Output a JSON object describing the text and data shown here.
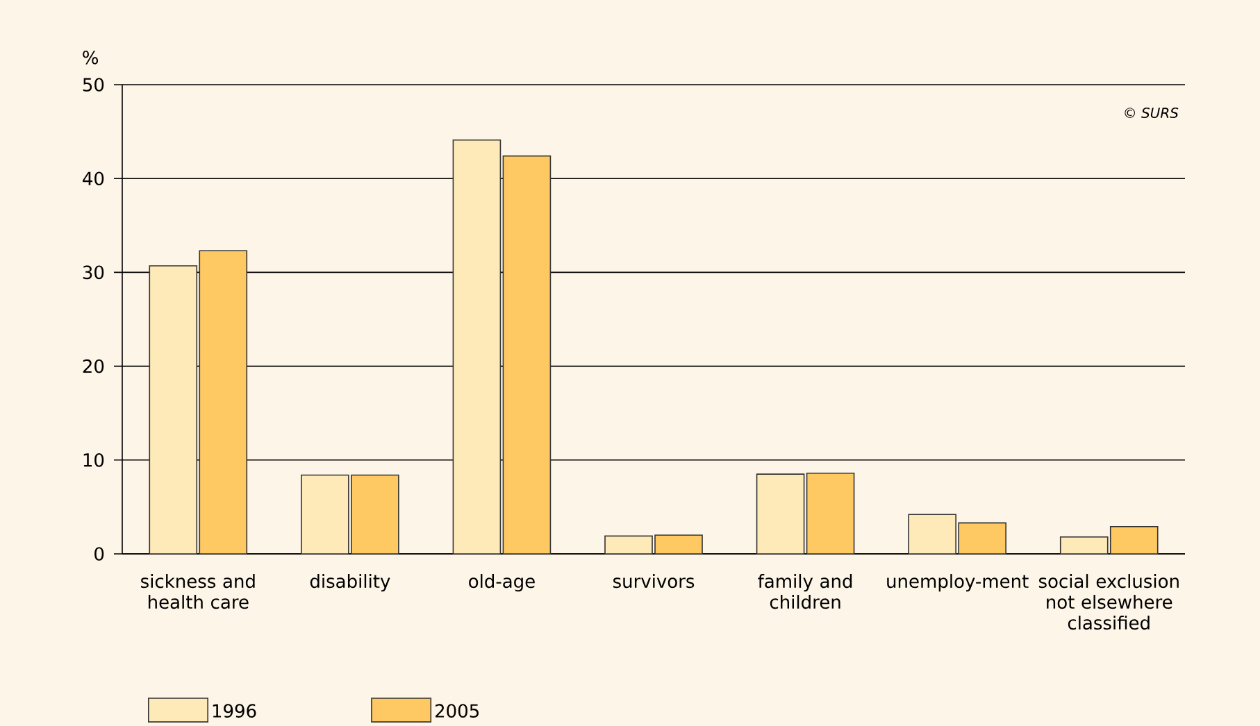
{
  "chart_data": {
    "type": "bar",
    "ylabel": "%",
    "categories": [
      "sickness and health care",
      "disability",
      "old-age",
      "survivors",
      "family and children",
      "unemploy-ment",
      "social exclusion not elsewhere classified"
    ],
    "series": [
      {
        "name": "1996",
        "color": "#fee9b8",
        "values": [
          30.7,
          8.4,
          44.1,
          1.9,
          8.5,
          4.2,
          1.8
        ]
      },
      {
        "name": "2005",
        "color": "#fec962",
        "values": [
          32.3,
          8.4,
          42.4,
          2.0,
          8.6,
          3.3,
          2.9
        ]
      }
    ],
    "ylim": [
      0,
      50
    ],
    "yticks": [
      0,
      10,
      20,
      30,
      40,
      50
    ],
    "grid": "y",
    "legend": "bottom left",
    "annotations": [
      "© SURS"
    ]
  }
}
